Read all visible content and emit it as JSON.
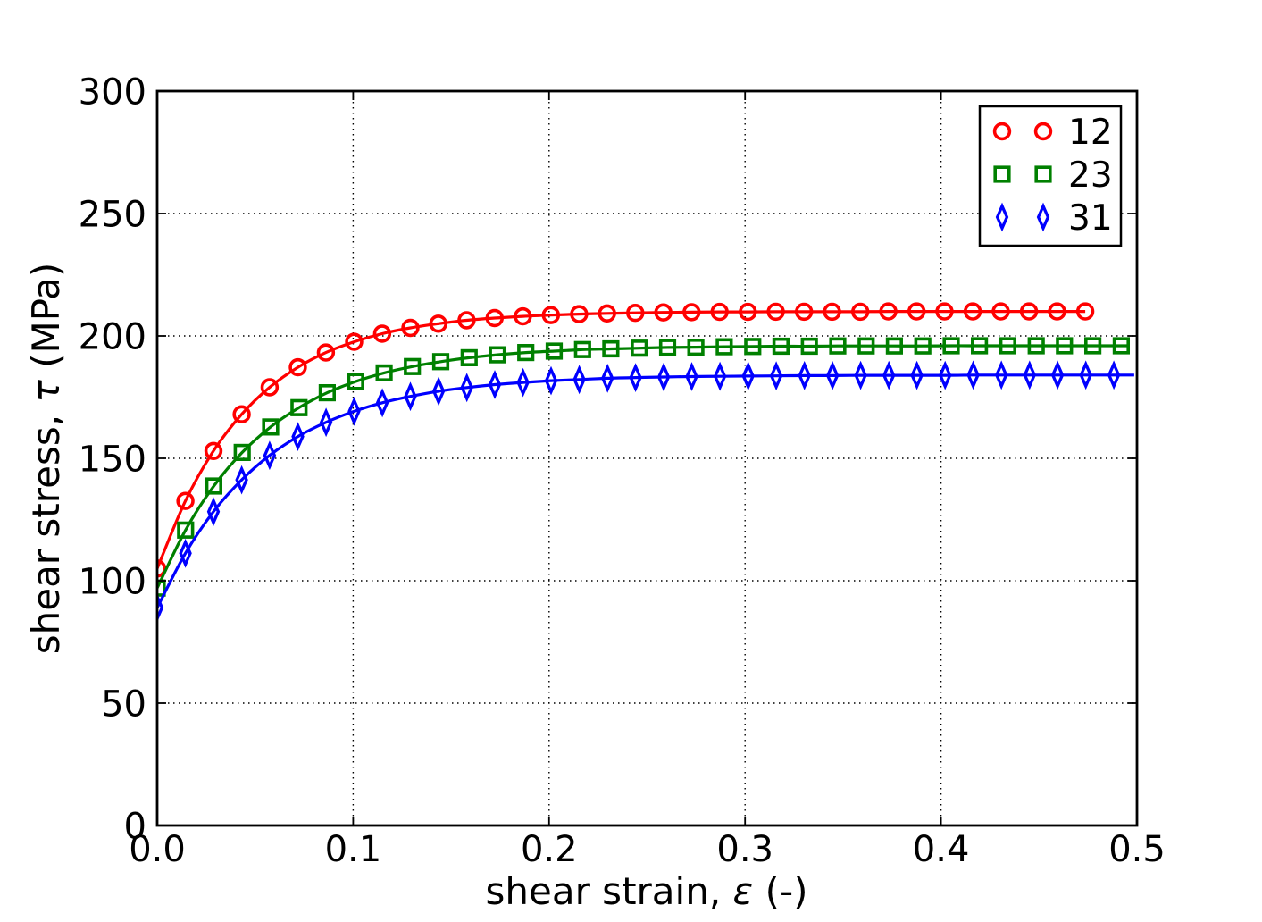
{
  "chart_data": {
    "type": "line",
    "title": "",
    "xlabel": "shear strain, ε (-)",
    "ylabel": "shear stress, τ (MPa)",
    "xlim": [
      0.0,
      0.5
    ],
    "ylim": [
      0,
      300
    ],
    "grid": "dotted",
    "legend_position": "upper right",
    "xticks": [
      {
        "v": 0.0,
        "label": "0.0"
      },
      {
        "v": 0.1,
        "label": "0.1"
      },
      {
        "v": 0.2,
        "label": "0.2"
      },
      {
        "v": 0.3,
        "label": "0.3"
      },
      {
        "v": 0.4,
        "label": "0.4"
      },
      {
        "v": 0.5,
        "label": "0.5"
      }
    ],
    "yticks": [
      {
        "v": 0,
        "label": "0"
      },
      {
        "v": 50,
        "label": "50"
      },
      {
        "v": 100,
        "label": "100"
      },
      {
        "v": 150,
        "label": "150"
      },
      {
        "v": 200,
        "label": "200"
      },
      {
        "v": 250,
        "label": "250"
      },
      {
        "v": 300,
        "label": "300"
      }
    ],
    "series": [
      {
        "name": "12",
        "color": "#ff0000",
        "marker": "circle",
        "line_end_x": 0.4736,
        "x": [
          0,
          0.0144,
          0.0287,
          0.0431,
          0.0574,
          0.0718,
          0.0861,
          0.1005,
          0.1148,
          0.1292,
          0.1435,
          0.1579,
          0.1722,
          0.1866,
          0.2009,
          0.2153,
          0.2296,
          0.244,
          0.2583,
          0.2727,
          0.287,
          0.3014,
          0.3157,
          0.3301,
          0.3444,
          0.3588,
          0.3731,
          0.3875,
          0.4018,
          0.4162,
          0.4305,
          0.4449,
          0.4592,
          0.4736
        ],
        "y": [
          105,
          132.6,
          153,
          168,
          179,
          187.2,
          193.2,
          197.6,
          200.9,
          203.3,
          205,
          206.4,
          207.3,
          208,
          208.5,
          208.9,
          209.2,
          209.4,
          209.6,
          209.7,
          209.8,
          209.8,
          209.9,
          209.9,
          209.9,
          209.9,
          210,
          210,
          210,
          210,
          210,
          210,
          210,
          210
        ]
      },
      {
        "name": "23",
        "color": "#008000",
        "marker": "square",
        "line_end_x": 0.495,
        "x": [
          0,
          0.0145,
          0.0289,
          0.0434,
          0.0579,
          0.0724,
          0.0868,
          0.1013,
          0.1158,
          0.1302,
          0.1447,
          0.1592,
          0.1736,
          0.1881,
          0.2026,
          0.2171,
          0.2315,
          0.246,
          0.2605,
          0.2749,
          0.2894,
          0.3039,
          0.3183,
          0.3328,
          0.3473,
          0.3618,
          0.3762,
          0.3907,
          0.4052,
          0.4196,
          0.4341,
          0.4486,
          0.463,
          0.4775,
          0.492
        ],
        "y": [
          97,
          120.7,
          138.7,
          152.4,
          162.8,
          170.7,
          176.8,
          181.4,
          184.9,
          187.5,
          189.5,
          191.1,
          192.3,
          193.2,
          193.8,
          194.4,
          194.7,
          195,
          195.3,
          195.4,
          195.6,
          195.7,
          195.8,
          195.8,
          195.9,
          195.9,
          195.9,
          195.9,
          196,
          196,
          196,
          196,
          196,
          196,
          196
        ]
      },
      {
        "name": "31",
        "color": "#0000ff",
        "marker": "diamond",
        "line_end_x": 0.4986,
        "x": [
          0,
          0.0144,
          0.0287,
          0.0431,
          0.0574,
          0.0718,
          0.0862,
          0.1005,
          0.1149,
          0.1292,
          0.1436,
          0.158,
          0.1723,
          0.1867,
          0.201,
          0.2154,
          0.2298,
          0.2441,
          0.2585,
          0.2728,
          0.2872,
          0.3016,
          0.3159,
          0.3303,
          0.3446,
          0.359,
          0.3734,
          0.3877,
          0.4021,
          0.4164,
          0.4308,
          0.4452,
          0.4595,
          0.4739,
          0.4882
        ],
        "y": [
          89,
          111.2,
          128.2,
          141.2,
          151.2,
          158.9,
          164.7,
          169.2,
          172.7,
          175.3,
          177.4,
          178.9,
          180.1,
          181,
          181.7,
          182.2,
          182.7,
          183,
          183.2,
          183.4,
          183.5,
          183.6,
          183.7,
          183.8,
          183.8,
          183.9,
          183.9,
          183.9,
          183.9,
          184,
          184,
          184,
          184,
          184,
          184
        ]
      }
    ]
  },
  "labels": {
    "xlabel_pre": "shear strain, ",
    "xlabel_sym": "ε",
    "xlabel_post": " (-)",
    "ylabel_pre": "shear stress, ",
    "ylabel_sym": "τ",
    "ylabel_post": " (MPa)"
  },
  "colors": {
    "axes": "#000000",
    "grid": "#000000",
    "background": "#ffffff",
    "series_12": "#ff0000",
    "series_23": "#008000",
    "series_31": "#0000ff"
  }
}
